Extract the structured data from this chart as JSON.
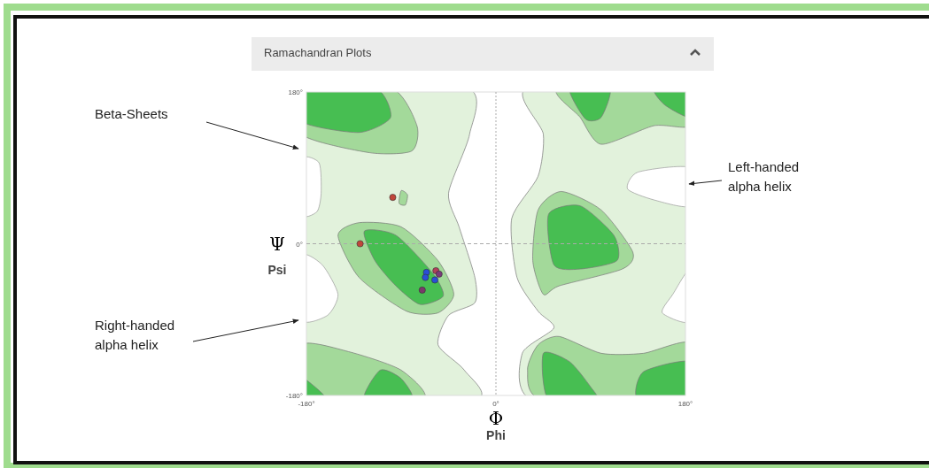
{
  "chart_data": {
    "type": "scatter",
    "title": "Ramachandran Plots",
    "xlabel": "Φ\nPhi",
    "ylabel": "Ψ\nPsi",
    "x": [
      -98,
      -129,
      -66,
      -57,
      -54,
      -67,
      -58,
      -70
    ],
    "values": [
      55,
      0,
      -34,
      -32,
      -36,
      -40,
      -43,
      -55
    ],
    "colors": [
      "#c0463a",
      "#c0463a",
      "#2a4fd6",
      "#b0405a",
      "#7a3a7a",
      "#2a4fd6",
      "#2a4fd6",
      "#7a3a6a"
    ],
    "marker": "circle",
    "xlim": [
      -180,
      180
    ],
    "ylim": [
      -180,
      180
    ],
    "xticks": [
      {
        "value": -180,
        "label": "-180°"
      },
      {
        "value": 0,
        "label": "0°"
      },
      {
        "value": 180,
        "label": "180°"
      }
    ],
    "yticks": [
      {
        "value": -180,
        "label": "-180°"
      },
      {
        "value": 0,
        "label": "0°"
      },
      {
        "value": 180,
        "label": "180°"
      }
    ],
    "ref_lines": [
      {
        "axis": "x",
        "value": 0,
        "line_style": "dotted",
        "color": "#aaaaaa"
      },
      {
        "axis": "y",
        "value": 0,
        "line_style": "dashed",
        "color": "#aaaaaa"
      }
    ],
    "annotations": [
      "Beta-Sheets",
      "Left-handed\nalpha helix",
      "Right-handed\nalpha helix"
    ]
  }
}
